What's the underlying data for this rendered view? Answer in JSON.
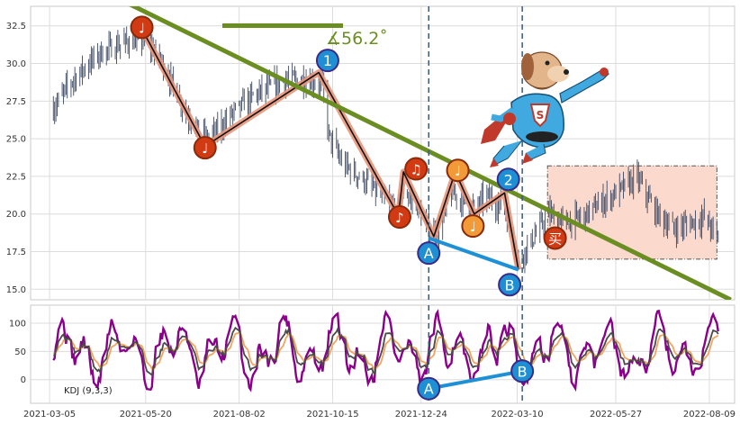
{
  "chart_data": [
    {
      "type": "candlestick",
      "panel": "price",
      "ylim": [
        14.3,
        33.8
      ],
      "yticks": [
        "15.0",
        "17.5",
        "20.0",
        "22.5",
        "25.0",
        "27.5",
        "30.0",
        "32.5"
      ],
      "ytick_values": [
        15.0,
        17.5,
        20.0,
        22.5,
        25.0,
        27.5,
        30.0,
        32.5
      ],
      "grid": true,
      "close_path_anchors": [
        [
          "2021-03-08",
          27.0
        ],
        [
          "2021-03-22",
          28.8
        ],
        [
          "2021-04-12",
          30.6
        ],
        [
          "2021-05-03",
          31.4
        ],
        [
          "2021-05-20",
          31.6
        ],
        [
          "2021-06-01",
          30.2
        ],
        [
          "2021-06-22",
          26.6
        ],
        [
          "2021-07-08",
          24.8
        ],
        [
          "2021-07-29",
          26.8
        ],
        [
          "2021-08-16",
          28.0
        ],
        [
          "2021-09-06",
          28.8
        ],
        [
          "2021-09-20",
          29.0
        ],
        [
          "2021-10-07",
          28.6
        ],
        [
          "2021-10-12",
          25.2
        ],
        [
          "2021-10-22",
          23.4
        ],
        [
          "2021-11-15",
          21.8
        ],
        [
          "2021-12-06",
          20.0
        ],
        [
          "2021-12-10",
          21.6
        ],
        [
          "2021-12-20",
          20.6
        ],
        [
          "2021-12-30",
          18.8
        ],
        [
          "2022-01-07",
          18.8
        ],
        [
          "2022-01-17",
          21.4
        ],
        [
          "2022-02-04",
          20.4
        ],
        [
          "2022-02-14",
          21.2
        ],
        [
          "2022-02-28",
          20.3
        ],
        [
          "2022-03-11",
          17.0
        ],
        [
          "2022-03-18",
          17.8
        ],
        [
          "2022-04-04",
          20.0
        ],
        [
          "2022-04-18",
          19.4
        ],
        [
          "2022-05-02",
          19.9
        ],
        [
          "2022-05-20",
          21.0
        ],
        [
          "2022-06-13",
          22.4
        ],
        [
          "2022-06-27",
          20.2
        ],
        [
          "2022-07-11",
          19.0
        ],
        [
          "2022-07-25",
          19.4
        ],
        [
          "2022-08-05",
          19.8
        ],
        [
          "2022-08-16",
          18.3
        ]
      ],
      "zigzag": [
        [
          "2021-05-17",
          32.3
        ],
        [
          "2021-07-06",
          24.5
        ],
        [
          "2021-10-04",
          29.4
        ],
        [
          "2021-12-06",
          19.9
        ],
        [
          "2021-12-10",
          22.8
        ],
        [
          "2022-01-03",
          18.5
        ],
        [
          "2022-01-20",
          22.8
        ],
        [
          "2022-02-04",
          20.0
        ],
        [
          "2022-02-28",
          21.4
        ],
        [
          "2022-03-11",
          16.3
        ]
      ],
      "trendline": {
        "from": [
          "2021-05-01",
          34.2
        ],
        "to": [
          "2022-08-26",
          14.3
        ],
        "color": "#6b8e23"
      },
      "angle_label": "∡56.2˚",
      "markers": [
        {
          "label": "♩",
          "date": "2021-05-17",
          "y": 32.4,
          "style": "red"
        },
        {
          "label": "♩",
          "date": "2021-07-06",
          "y": 24.4,
          "style": "red"
        },
        {
          "label": "1",
          "date": "2021-10-11",
          "y": 30.2,
          "style": "blue"
        },
        {
          "label": "♪",
          "date": "2021-12-07",
          "y": 19.8,
          "style": "red"
        },
        {
          "label": "♫",
          "date": "2021-12-20",
          "y": 23.0,
          "style": "red"
        },
        {
          "label": "A",
          "date": "2021-12-30",
          "y": 17.4,
          "style": "blue"
        },
        {
          "label": "♩",
          "date": "2022-01-22",
          "y": 22.9,
          "style": "orange"
        },
        {
          "label": "♩",
          "date": "2022-02-03",
          "y": 19.2,
          "style": "orange"
        },
        {
          "label": "2",
          "date": "2022-03-03",
          "y": 22.3,
          "style": "blue"
        },
        {
          "label": "B",
          "date": "2022-03-04",
          "y": 15.3,
          "style": "blue"
        },
        {
          "label": "买",
          "date": "2022-04-09",
          "y": 18.4,
          "style": "red"
        }
      ],
      "ab_line": {
        "from": [
          "2021-12-30",
          18.4
        ],
        "to": [
          "2022-03-11",
          16.3
        ]
      },
      "vlines": [
        "2021-12-30",
        "2022-03-14"
      ],
      "box": {
        "from": [
          "2022-04-03",
          23.2
        ],
        "to": [
          "2022-08-15",
          17.0
        ]
      }
    },
    {
      "type": "line",
      "panel": "indicator",
      "ylim": [
        -42,
        132
      ],
      "yticks": [
        "0",
        "50",
        "100"
      ],
      "ytick_values": [
        0,
        50,
        100
      ],
      "grid": true,
      "legend": "KDJ (9,3,3)",
      "series": [
        {
          "key": "J",
          "color": "#8b008b"
        },
        {
          "key": "D",
          "color": "#f4a460"
        },
        {
          "key": "K",
          "color": "#4a4a4a"
        }
      ],
      "markers": [
        {
          "label": "A",
          "date": "2021-12-30",
          "y": -16,
          "style": "blue"
        },
        {
          "label": "B",
          "date": "2022-03-14",
          "y": 15,
          "style": "blue"
        }
      ],
      "ab_line": {
        "from": [
          "2021-12-30",
          -16
        ],
        "to": [
          "2022-03-14",
          15
        ]
      }
    }
  ],
  "x_axis": {
    "range": [
      "2021-02-18",
      "2022-08-29"
    ],
    "ticks": [
      "2021-03-05",
      "2021-05-20",
      "2021-08-02",
      "2021-10-15",
      "2021-12-24",
      "2022-03-10",
      "2022-05-27",
      "2022-08-09"
    ]
  },
  "colors": {
    "zigzag_outer": "#e8957a",
    "zigzag_inner": "#111111",
    "candle": "#3b4863",
    "trendline": "#6b8e23",
    "vline": "#3a5a7a",
    "ab_line": "#1e90d6",
    "box_fill": "#fbd9cc",
    "marker_red": "#d23a13",
    "marker_blue": "#1e8fd2",
    "marker_orange": "#f29a38"
  },
  "illustration": "superhero-dog-icon"
}
